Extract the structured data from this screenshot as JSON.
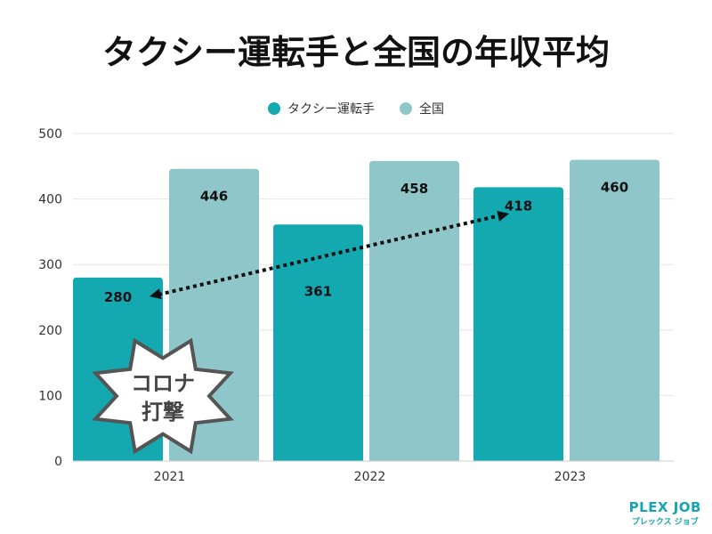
{
  "chart_data": {
    "type": "bar",
    "title": "タクシー運転手と全国の年収平均",
    "categories": [
      "2021",
      "2022",
      "2023"
    ],
    "series": [
      {
        "name": "タクシー運転手",
        "values": [
          280,
          361,
          418
        ],
        "color": "#14a9b1"
      },
      {
        "name": "全国",
        "values": [
          446,
          458,
          460
        ],
        "color": "#8fc6c9"
      }
    ],
    "ylim": [
      0,
      500
    ],
    "yticks": [
      0,
      100,
      200,
      300,
      400,
      500
    ],
    "grid": true,
    "legend": "top-center",
    "annotations": {
      "burst": "コロナ\n打撃",
      "burst_line1": "コロナ",
      "burst_line2": "打撃",
      "arrow": "2021 280 → 2023 418 (dotted, double-headed)"
    }
  },
  "logo": {
    "name": "PLEX JOB",
    "sub": "プレックス ジョブ"
  }
}
